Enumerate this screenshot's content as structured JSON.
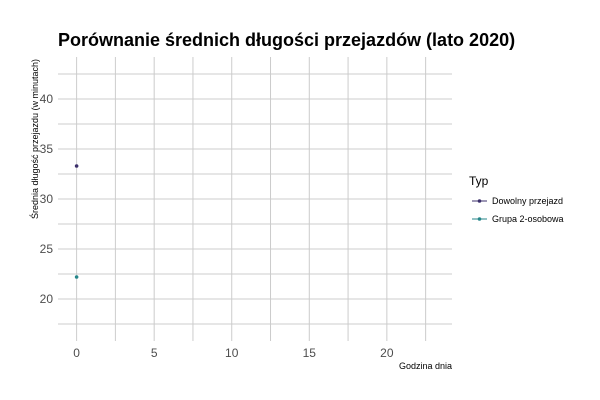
{
  "chart_data": {
    "type": "line",
    "title": "Porównanie średnich długości przejazdów (lato 2020)",
    "xlabel": "Godzina dnia",
    "ylabel": "Średnia długość przejazdu (w minutach)",
    "xlim": [
      -1.2,
      24.2
    ],
    "ylim": [
      15.8,
      44.2
    ],
    "x_ticks": [
      0,
      5,
      10,
      15,
      20
    ],
    "y_ticks": [
      20,
      25,
      30,
      35,
      40
    ],
    "grid": true,
    "legend": {
      "title": "Typ",
      "position": "right"
    },
    "series": [
      {
        "name": "Dowolny przejazd",
        "color": "#3b2f6b",
        "x": [
          0
        ],
        "y": [
          33.3
        ]
      },
      {
        "name": "Grupa 2-osobowa",
        "color": "#26868a",
        "x": [
          0
        ],
        "y": [
          22.2
        ]
      }
    ]
  }
}
